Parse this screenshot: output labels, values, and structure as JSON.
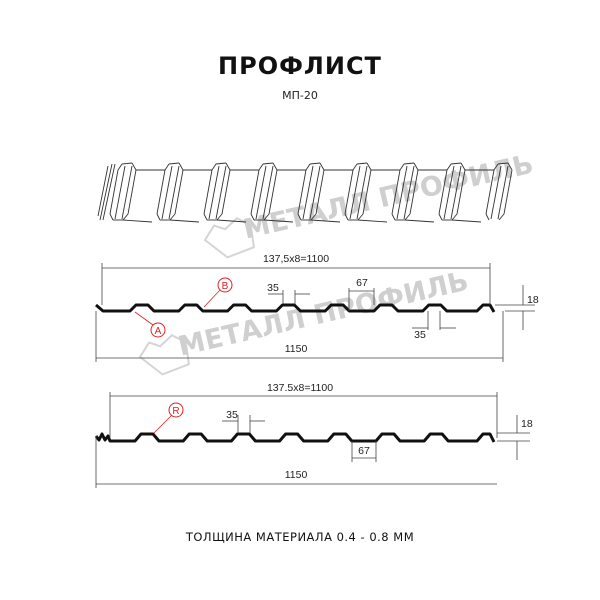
{
  "header": {
    "title": "ПРОФЛИСТ",
    "subtitle": "МП-20"
  },
  "watermark": {
    "text": "МЕТАЛЛ ПРОФИЛЬ",
    "color": "#cfcfcf"
  },
  "profile_1": {
    "pitch_label": "137,5x8=1100",
    "crest_width": "35",
    "trough_width": "67",
    "height": "18",
    "bottom_crest_width": "35",
    "total_width": "1150",
    "callout_a": "A",
    "callout_b": "B"
  },
  "profile_2": {
    "pitch_label": "137.5x8=1100",
    "crest_width": "35",
    "trough_width": "67",
    "height": "18",
    "total_width": "1150",
    "callout_r": "R"
  },
  "footer": {
    "thickness": "ТОЛЩИНА МАТЕРИАЛА 0.4 - 0.8 ММ"
  },
  "colors": {
    "profile": "#111111",
    "dimension": "#333333",
    "callout": "#e02020"
  }
}
